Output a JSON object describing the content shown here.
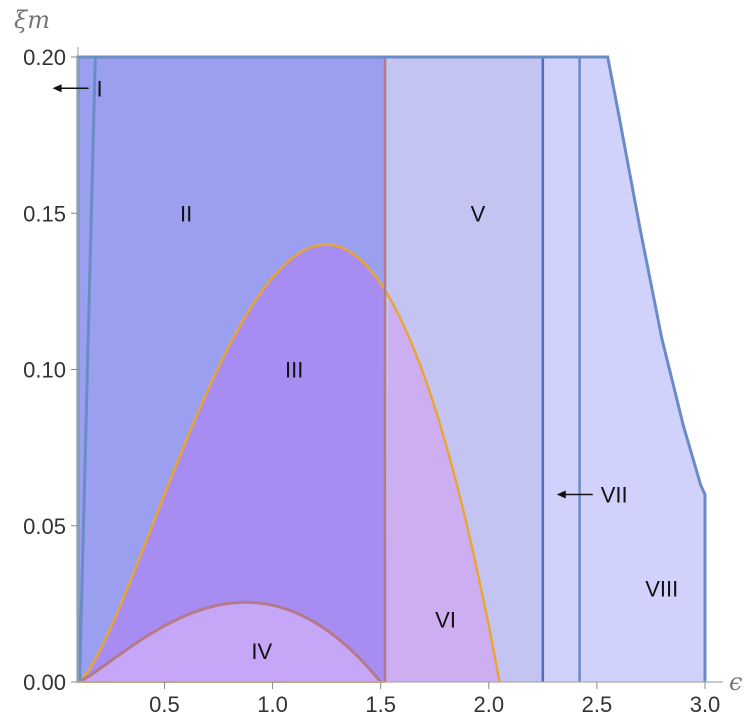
{
  "chart_data": {
    "type": "area",
    "xlabel": "ϵ",
    "ylabel": "ξm",
    "xlim": [
      0.1,
      3.0
    ],
    "ylim": [
      0.0,
      0.2
    ],
    "x_ticks": [
      "0.5",
      "1.0",
      "1.5",
      "2.0",
      "2.5",
      "3.0"
    ],
    "y_ticks": [
      "0.00",
      "0.05",
      "0.10",
      "0.15",
      "0.20"
    ],
    "grid": false,
    "colors": {
      "region_I_II": "#9aa0ef",
      "region_V": "#c3c4f2",
      "region_VII_VIII": "#d1d2fb",
      "region_III": "#a78df2",
      "region_VI": "#cdaef1",
      "region_IV": "#c6a6f6",
      "boundary_blue": "#6a8cc6",
      "boundary_orange": "#eba52f",
      "boundary_brown": "#b47a8a",
      "line_dark_blue": "#4f6bbf"
    },
    "boundaries": {
      "region_I_line": {
        "x": [
          0.107,
          0.18
        ],
        "y": [
          0.0,
          0.2
        ]
      },
      "orange_dome_peak": {
        "x": 1.3,
        "y": 0.14
      },
      "orange_dome_roots": [
        0.1,
        2.05
      ],
      "brown_dome_peak": {
        "x": 0.9,
        "y": 0.0255
      },
      "brown_dome_roots": [
        0.1,
        1.5
      ],
      "vertical_lines": [
        1.52,
        2.25,
        2.42
      ],
      "outer_curve": {
        "x": [
          2.55,
          2.6,
          2.7,
          2.8,
          2.9,
          2.98,
          3.0
        ],
        "y": [
          0.2,
          0.182,
          0.145,
          0.11,
          0.082,
          0.063,
          0.06
        ]
      }
    },
    "region_labels": [
      {
        "text": "I",
        "x": 0.2,
        "y": 0.19,
        "arrow": true
      },
      {
        "text": "II",
        "x": 0.6,
        "y": 0.15
      },
      {
        "text": "III",
        "x": 1.1,
        "y": 0.1
      },
      {
        "text": "IV",
        "x": 0.95,
        "y": 0.01
      },
      {
        "text": "V",
        "x": 1.95,
        "y": 0.15
      },
      {
        "text": "VI",
        "x": 1.8,
        "y": 0.02
      },
      {
        "text": "VII",
        "x": 2.58,
        "y": 0.06,
        "arrow": true
      },
      {
        "text": "VIII",
        "x": 2.8,
        "y": 0.03
      }
    ]
  }
}
